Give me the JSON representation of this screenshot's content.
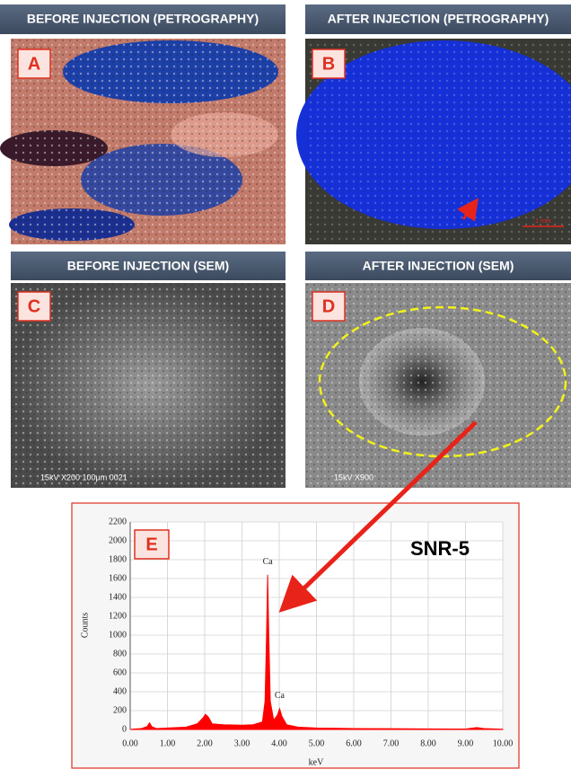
{
  "panels": [
    {
      "header": "BEFORE INJECTION (PETROGRAPHY)",
      "letter": "A"
    },
    {
      "header": "AFTER INJECTION (PETROGRAPHY)",
      "letter": "B",
      "scale_bar": "1 mm"
    },
    {
      "header": "BEFORE INJECTION (SEM)",
      "letter": "C",
      "caption": "15kV   X200   100μm   0021"
    },
    {
      "header": "AFTER INJECTION (SEM)",
      "letter": "D",
      "caption": "15kV   X900"
    }
  ],
  "chart_data": {
    "type": "area",
    "label": "E",
    "title": "SNR-5",
    "x_label": "keV",
    "y_label": "Counts",
    "color": "#ff0000",
    "grid": true,
    "x": [
      0,
      0.1,
      0.3,
      0.45,
      0.52,
      0.58,
      0.7,
      1.0,
      1.5,
      1.8,
      1.95,
      2.02,
      2.1,
      2.2,
      2.5,
      3.0,
      3.3,
      3.55,
      3.62,
      3.66,
      3.69,
      3.72,
      3.76,
      3.85,
      3.95,
      4.01,
      4.07,
      4.2,
      4.5,
      5,
      6,
      7,
      8,
      9,
      9.3,
      9.5,
      10
    ],
    "values": [
      0,
      5,
      10,
      30,
      70,
      30,
      10,
      15,
      25,
      60,
      120,
      160,
      130,
      60,
      50,
      45,
      50,
      80,
      300,
      1000,
      1640,
      1000,
      300,
      100,
      150,
      220,
      140,
      50,
      25,
      15,
      10,
      8,
      6,
      5,
      20,
      10,
      3
    ],
    "xlim": [
      0,
      10
    ],
    "ylim": [
      0,
      2200
    ],
    "xticks": [
      {
        "value": 0,
        "label": "0.00"
      },
      {
        "value": 1,
        "label": "1.00"
      },
      {
        "value": 2,
        "label": "2.00"
      },
      {
        "value": 3,
        "label": "3.00"
      },
      {
        "value": 4,
        "label": "4.00"
      },
      {
        "value": 5,
        "label": "5.00"
      },
      {
        "value": 6,
        "label": "6.00"
      },
      {
        "value": 7,
        "label": "7.00"
      },
      {
        "value": 8,
        "label": "8.00"
      },
      {
        "value": 9,
        "label": "9.00"
      },
      {
        "value": 10,
        "label": "10.00"
      }
    ],
    "yticks": [
      0,
      200,
      400,
      600,
      800,
      1000,
      1200,
      1400,
      1600,
      1800,
      2000,
      2200
    ],
    "annotations": [
      {
        "text": "Ca",
        "x": 3.69,
        "y": 1640
      },
      {
        "text": "Ca",
        "x": 4.01,
        "y": 220
      }
    ]
  }
}
